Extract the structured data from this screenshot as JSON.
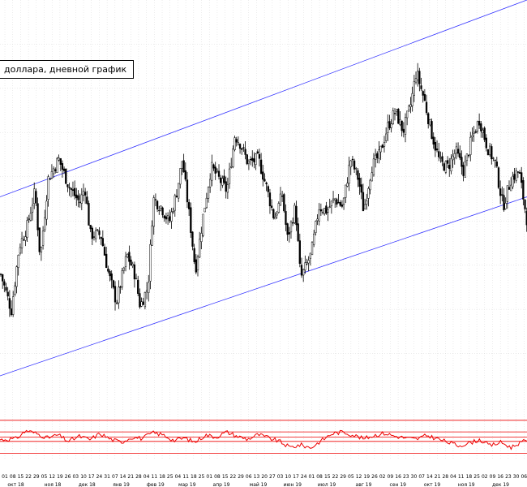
{
  "legend_text": "доллара, дневной график",
  "colors": {
    "channel": "#3333ff",
    "candle": "#000000",
    "candle_up": "#ffffff",
    "oscillator": "#ee0000",
    "oscillator_levels": "#ee0000",
    "grid": "#d8d8d8",
    "background": "#ffffff"
  },
  "chart_data": {
    "type": "candlestick",
    "grid": true,
    "ylim": [
      0,
      100
    ],
    "channel": {
      "upper": [
        [
          0,
          50.5
        ],
        [
          1,
          100
        ]
      ],
      "lower": [
        [
          0,
          5.5
        ],
        [
          1,
          50.5
        ]
      ]
    },
    "close_path": [
      [
        0.0,
        31
      ],
      [
        0.02,
        22
      ],
      [
        0.035,
        38
      ],
      [
        0.05,
        43
      ],
      [
        0.065,
        52
      ],
      [
        0.075,
        35
      ],
      [
        0.09,
        55
      ],
      [
        0.11,
        60
      ],
      [
        0.13,
        53
      ],
      [
        0.15,
        49
      ],
      [
        0.16,
        53
      ],
      [
        0.17,
        41
      ],
      [
        0.19,
        41
      ],
      [
        0.205,
        31
      ],
      [
        0.22,
        24
      ],
      [
        0.24,
        36
      ],
      [
        0.255,
        31
      ],
      [
        0.265,
        23
      ],
      [
        0.28,
        28
      ],
      [
        0.29,
        50
      ],
      [
        0.305,
        48
      ],
      [
        0.32,
        44
      ],
      [
        0.335,
        52
      ],
      [
        0.345,
        60
      ],
      [
        0.36,
        44
      ],
      [
        0.37,
        32
      ],
      [
        0.385,
        46
      ],
      [
        0.4,
        58
      ],
      [
        0.415,
        55
      ],
      [
        0.43,
        52
      ],
      [
        0.445,
        66
      ],
      [
        0.455,
        64
      ],
      [
        0.47,
        59
      ],
      [
        0.49,
        60
      ],
      [
        0.505,
        53
      ],
      [
        0.52,
        45
      ],
      [
        0.535,
        51
      ],
      [
        0.545,
        40
      ],
      [
        0.56,
        48
      ],
      [
        0.57,
        30
      ],
      [
        0.59,
        36
      ],
      [
        0.605,
        48
      ],
      [
        0.62,
        47
      ],
      [
        0.635,
        50
      ],
      [
        0.65,
        48
      ],
      [
        0.665,
        60
      ],
      [
        0.68,
        55
      ],
      [
        0.69,
        47
      ],
      [
        0.705,
        58
      ],
      [
        0.72,
        61
      ],
      [
        0.735,
        68
      ],
      [
        0.75,
        72
      ],
      [
        0.765,
        67
      ],
      [
        0.78,
        74
      ],
      [
        0.79,
        82
      ],
      [
        0.805,
        75
      ],
      [
        0.82,
        66
      ],
      [
        0.835,
        59
      ],
      [
        0.85,
        58
      ],
      [
        0.865,
        62
      ],
      [
        0.88,
        57
      ],
      [
        0.895,
        65
      ],
      [
        0.91,
        70
      ],
      [
        0.925,
        63
      ],
      [
        0.94,
        59
      ],
      [
        0.955,
        48
      ],
      [
        0.97,
        55
      ],
      [
        0.985,
        57
      ],
      [
        1.0,
        45
      ]
    ],
    "oscillator": {
      "levels": [
        89,
        62,
        50,
        40,
        12
      ],
      "path": [
        [
          0.0,
          44
        ],
        [
          0.03,
          46
        ],
        [
          0.05,
          65
        ],
        [
          0.07,
          58
        ],
        [
          0.09,
          48
        ],
        [
          0.11,
          55
        ],
        [
          0.13,
          40
        ],
        [
          0.15,
          52
        ],
        [
          0.17,
          44
        ],
        [
          0.19,
          58
        ],
        [
          0.21,
          45
        ],
        [
          0.23,
          38
        ],
        [
          0.25,
          50
        ],
        [
          0.27,
          47
        ],
        [
          0.29,
          60
        ],
        [
          0.31,
          55
        ],
        [
          0.33,
          42
        ],
        [
          0.35,
          48
        ],
        [
          0.37,
          38
        ],
        [
          0.39,
          55
        ],
        [
          0.41,
          50
        ],
        [
          0.43,
          62
        ],
        [
          0.45,
          52
        ],
        [
          0.47,
          45
        ],
        [
          0.49,
          56
        ],
        [
          0.51,
          48
        ],
        [
          0.53,
          40
        ],
        [
          0.55,
          26
        ],
        [
          0.57,
          32
        ],
        [
          0.59,
          25
        ],
        [
          0.61,
          42
        ],
        [
          0.63,
          58
        ],
        [
          0.65,
          62
        ],
        [
          0.67,
          55
        ],
        [
          0.69,
          46
        ],
        [
          0.71,
          54
        ],
        [
          0.73,
          59
        ],
        [
          0.75,
          52
        ],
        [
          0.77,
          48
        ],
        [
          0.79,
          45
        ],
        [
          0.81,
          54
        ],
        [
          0.83,
          46
        ],
        [
          0.85,
          38
        ],
        [
          0.87,
          30
        ],
        [
          0.89,
          36
        ],
        [
          0.91,
          44
        ],
        [
          0.93,
          30
        ],
        [
          0.95,
          38
        ],
        [
          0.97,
          26
        ],
        [
          0.985,
          36
        ],
        [
          1.0,
          42
        ]
      ]
    },
    "x_ticks": [
      "01",
      "08",
      "15",
      "22",
      "29",
      "05",
      "12",
      "19",
      "26",
      "03",
      "10",
      "17",
      "24",
      "31",
      "07",
      "14",
      "21",
      "28",
      "04",
      "11",
      "18",
      "25",
      "04",
      "11",
      "18",
      "25",
      "01",
      "08",
      "15",
      "22",
      "29",
      "06",
      "13",
      "20",
      "27",
      "03",
      "10",
      "17",
      "24",
      "01",
      "08",
      "15",
      "22",
      "29",
      "05",
      "12",
      "19",
      "26",
      "02",
      "09",
      "16",
      "23",
      "30",
      "07",
      "14",
      "21",
      "28",
      "04",
      "11",
      "18",
      "25",
      "02",
      "09",
      "16",
      "23",
      "30",
      "06"
    ],
    "x_months": [
      {
        "label": "окт 18",
        "at": 0.03
      },
      {
        "label": "ноя 18",
        "at": 0.1
      },
      {
        "label": "дек 18",
        "at": 0.165
      },
      {
        "label": "янв 19",
        "at": 0.23
      },
      {
        "label": "фев 19",
        "at": 0.295
      },
      {
        "label": "мар 19",
        "at": 0.355
      },
      {
        "label": "апр 19",
        "at": 0.42
      },
      {
        "label": "май 19",
        "at": 0.49
      },
      {
        "label": "июн 19",
        "at": 0.555
      },
      {
        "label": "июл 19",
        "at": 0.62
      },
      {
        "label": "авг 19",
        "at": 0.69
      },
      {
        "label": "сен 19",
        "at": 0.755
      },
      {
        "label": "окт 19",
        "at": 0.82
      },
      {
        "label": "ноя 19",
        "at": 0.885
      },
      {
        "label": "дек 19",
        "at": 0.95
      }
    ]
  }
}
